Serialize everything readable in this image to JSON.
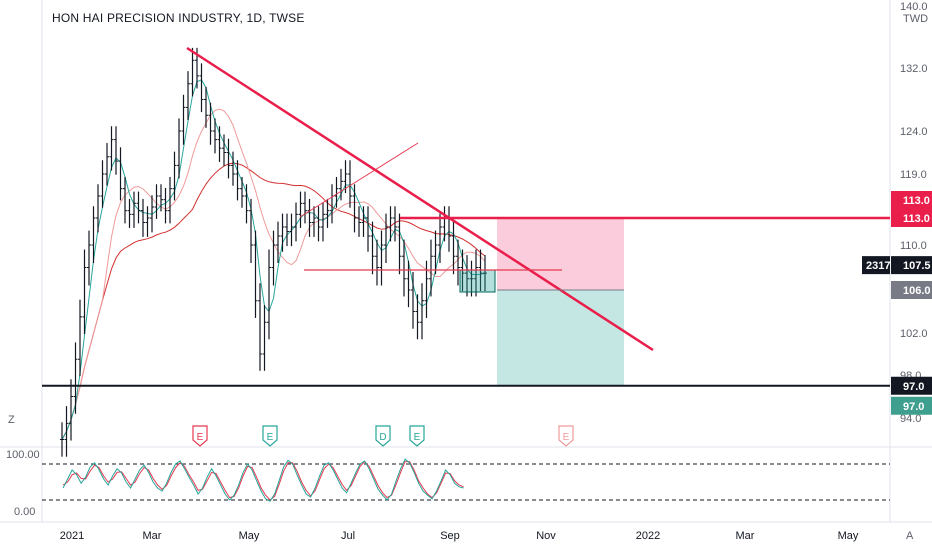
{
  "chart_data": {
    "type": "line",
    "title": "HON HAI PRECISION INDUSTRY, 1D, TWSE",
    "currency": "TWD",
    "price_axis_ticks": [
      "140.0",
      "132.0",
      "124.0",
      "119.0",
      "113.0",
      "110.0",
      "106.0",
      "102.0",
      "98.0",
      "94.0"
    ],
    "time_axis_ticks": [
      "2021",
      "Mar",
      "May",
      "Jul",
      "Sep",
      "Nov",
      "2022",
      "Mar",
      "May"
    ],
    "ylim": [
      92,
      140
    ],
    "grid": false,
    "price_series": [
      [
        0,
        92.0
      ],
      [
        2,
        93.5
      ],
      [
        4,
        96.0
      ],
      [
        6,
        99.5
      ],
      [
        8,
        103.5
      ],
      [
        10,
        108.0
      ],
      [
        12,
        110.0
      ],
      [
        14,
        113.0
      ],
      [
        16,
        116.0
      ],
      [
        18,
        119.0
      ],
      [
        20,
        121.0
      ],
      [
        22,
        123.0
      ],
      [
        24,
        120.5
      ],
      [
        26,
        117.0
      ],
      [
        28,
        114.0
      ],
      [
        30,
        113.5
      ],
      [
        32,
        115.0
      ],
      [
        34,
        114.0
      ],
      [
        36,
        112.5
      ],
      [
        38,
        113.0
      ],
      [
        40,
        114.5
      ],
      [
        42,
        116.0
      ],
      [
        44,
        115.5
      ],
      [
        46,
        114.0
      ],
      [
        48,
        117.0
      ],
      [
        50,
        120.0
      ],
      [
        52,
        124.0
      ],
      [
        54,
        127.0
      ],
      [
        56,
        130.0
      ],
      [
        58,
        133.0
      ],
      [
        60,
        131.0
      ],
      [
        62,
        128.0
      ],
      [
        64,
        126.0
      ],
      [
        66,
        124.0
      ],
      [
        68,
        123.0
      ],
      [
        70,
        122.0
      ],
      [
        72,
        121.5
      ],
      [
        74,
        120.0
      ],
      [
        76,
        119.0
      ],
      [
        78,
        117.0
      ],
      [
        80,
        116.0
      ],
      [
        82,
        114.0
      ],
      [
        84,
        110.0
      ],
      [
        86,
        105.0
      ],
      [
        88,
        100.0
      ],
      [
        90,
        103.0
      ],
      [
        92,
        108.0
      ],
      [
        94,
        110.0
      ],
      [
        96,
        111.0
      ],
      [
        98,
        112.0
      ],
      [
        100,
        111.5
      ],
      [
        102,
        112.0
      ],
      [
        104,
        113.5
      ],
      [
        106,
        115.0
      ],
      [
        108,
        114.0
      ],
      [
        110,
        112.5
      ],
      [
        112,
        113.0
      ],
      [
        114,
        112.0
      ],
      [
        116,
        113.5
      ],
      [
        118,
        114.0
      ],
      [
        120,
        116.0
      ],
      [
        122,
        117.0
      ],
      [
        124,
        118.0
      ],
      [
        126,
        119.0
      ],
      [
        128,
        116.0
      ],
      [
        130,
        113.0
      ],
      [
        132,
        112.5
      ],
      [
        134,
        113.0
      ],
      [
        136,
        111.0
      ],
      [
        138,
        109.0
      ],
      [
        140,
        108.0
      ],
      [
        142,
        110.0
      ],
      [
        144,
        112.0
      ],
      [
        146,
        113.0
      ],
      [
        148,
        112.0
      ],
      [
        150,
        109.0
      ],
      [
        152,
        107.0
      ],
      [
        154,
        106.0
      ],
      [
        156,
        104.0
      ],
      [
        158,
        103.0
      ],
      [
        160,
        105.0
      ],
      [
        162,
        107.0
      ],
      [
        164,
        109.0
      ],
      [
        166,
        110.0
      ],
      [
        168,
        112.0
      ],
      [
        170,
        113.0
      ],
      [
        172,
        111.0
      ],
      [
        174,
        109.0
      ],
      [
        176,
        108.0
      ],
      [
        178,
        107.5
      ],
      [
        180,
        107.0
      ],
      [
        182,
        107.0
      ],
      [
        184,
        108.0
      ],
      [
        186,
        107.5
      ],
      [
        188,
        107.5
      ]
    ],
    "annotations": {
      "last_price": "107.5",
      "countdown": "2317",
      "resistance": "113.0",
      "support": "97.0",
      "stop_target": "106.0",
      "event_markers": [
        "E",
        "E",
        "D",
        "E",
        "E"
      ]
    },
    "oscillator": {
      "upper_label": "100.00",
      "lower_label": "0.00",
      "range": [
        0,
        100
      ],
      "levels": [
        80,
        20
      ],
      "k": [
        40,
        55,
        70,
        62,
        48,
        58,
        75,
        82,
        70,
        55,
        45,
        60,
        72,
        65,
        50,
        40,
        55,
        70,
        78,
        66,
        50,
        40,
        35,
        48,
        66,
        80,
        85,
        72,
        58,
        45,
        30,
        40,
        58,
        72,
        60,
        45,
        30,
        20,
        28,
        45,
        66,
        80,
        70,
        52,
        35,
        22,
        18,
        30,
        52,
        75,
        86,
        80,
        62,
        45,
        30,
        25,
        40,
        60,
        78,
        82,
        70,
        55,
        40,
        32,
        48,
        65,
        80,
        85,
        72,
        55,
        38,
        28,
        20,
        30,
        52,
        72,
        88,
        82,
        66,
        48,
        35,
        28,
        22,
        35,
        52,
        70,
        62,
        48,
        42,
        40
      ],
      "d": [
        45,
        50,
        62,
        65,
        56,
        55,
        68,
        78,
        74,
        60,
        50,
        55,
        66,
        67,
        56,
        45,
        50,
        64,
        74,
        70,
        56,
        45,
        38,
        44,
        60,
        74,
        82,
        76,
        62,
        50,
        36,
        38,
        52,
        66,
        64,
        50,
        36,
        24,
        26,
        40,
        60,
        76,
        74,
        58,
        40,
        28,
        20,
        26,
        46,
        68,
        82,
        82,
        68,
        50,
        36,
        27,
        35,
        54,
        72,
        80,
        74,
        60,
        46,
        36,
        44,
        60,
        76,
        84,
        76,
        60,
        44,
        32,
        24,
        28,
        46,
        66,
        84,
        84,
        70,
        52,
        40,
        30,
        24,
        32,
        48,
        65,
        64,
        52,
        45,
        42
      ]
    },
    "ma_colors": {
      "fast": "#26a69a",
      "mid": "#ef9a9a",
      "slow": "#d32f2f"
    }
  }
}
